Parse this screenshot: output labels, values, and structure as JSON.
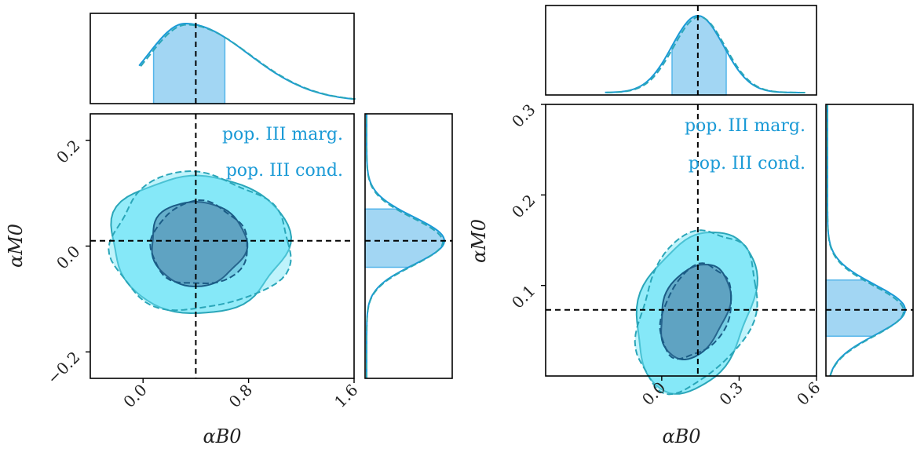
{
  "colors": {
    "marg": "#1a9ad6",
    "cond": "#2aa6b9",
    "fill_outer": "#72e5f7",
    "fill_inner": "#4d7fa6",
    "band": "#55b5ea",
    "truth": "#000000"
  },
  "chart_data": [
    {
      "type": "corner",
      "params": [
        "αB0",
        "αM0"
      ],
      "xlabel": "αB0",
      "ylabel": "αM0",
      "xlim": [
        -0.4,
        1.6
      ],
      "ylim": [
        -0.25,
        0.25
      ],
      "xticks": [
        0.0,
        0.8,
        1.6
      ],
      "xtick_labels": [
        "0.0",
        "0.8",
        "1.6"
      ],
      "yticks": [
        -0.2,
        0.0,
        0.2
      ],
      "ytick_labels": [
        "−0.2",
        "0.0",
        "0.2"
      ],
      "truth": {
        "x": 0.4,
        "y": 0.01
      },
      "legend": [
        "pop. III marg.",
        "pop. III cond."
      ],
      "contours": {
        "center": [
          0.42,
          0.005
        ],
        "outer_radius": [
          0.67,
          0.13
        ],
        "inner_radius": [
          0.36,
          0.08
        ],
        "shear": 0.0
      },
      "marginal_x": {
        "peak": 0.32,
        "sigma_left": 0.28,
        "sigma_right": 0.48,
        "range": [
          -0.03,
          1.6
        ],
        "band": [
          0.08,
          0.62
        ]
      },
      "marginal_y": {
        "peak": 0.01,
        "sigma": 0.045,
        "range": [
          -0.25,
          0.25
        ],
        "band": [
          -0.04,
          0.07
        ]
      }
    },
    {
      "type": "corner",
      "params": [
        "αB0",
        "αM0"
      ],
      "xlabel": "αB0",
      "ylabel": "αM0",
      "xlim": [
        -0.45,
        0.6
      ],
      "ylim": [
        0.0,
        0.3
      ],
      "xticks": [
        0.0,
        0.3,
        0.6
      ],
      "xtick_labels": [
        "0.0",
        "0.3",
        "0.6"
      ],
      "yticks": [
        0.1,
        0.2,
        0.3
      ],
      "ytick_labels": [
        "0.1",
        "0.2",
        "0.3"
      ],
      "truth": {
        "x": 0.14,
        "y": 0.073
      },
      "legend": [
        "pop. III marg.",
        "pop. III cond."
      ],
      "contours": {
        "center": [
          0.13,
          0.072
        ],
        "outer_radius": [
          0.23,
          0.085
        ],
        "inner_radius": [
          0.135,
          0.05
        ],
        "shear": 0.32
      },
      "marginal_x": {
        "peak": 0.14,
        "sigma_left": 0.1,
        "sigma_right": 0.1,
        "range": [
          -0.22,
          0.55
        ],
        "band": [
          0.04,
          0.25
        ]
      },
      "marginal_y": {
        "peak": 0.073,
        "sigma": 0.028,
        "range": [
          0.0,
          0.3
        ],
        "band": [
          0.044,
          0.106
        ]
      }
    }
  ]
}
